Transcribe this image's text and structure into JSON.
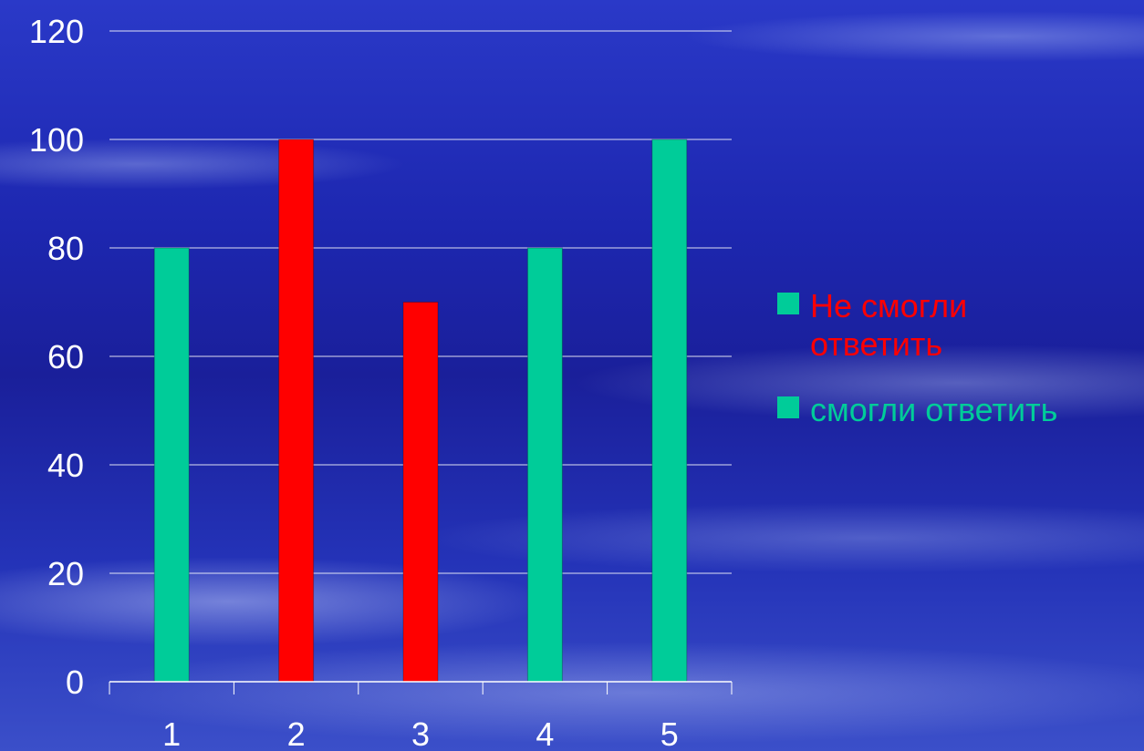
{
  "colors": {
    "background": "#1d27b0",
    "red": "#ff0000",
    "green": "#00cc99",
    "grid": "#ffffff",
    "text": "#ffffff"
  },
  "chart_data": {
    "type": "bar",
    "categories": [
      "1",
      "2",
      "3",
      "4",
      "5"
    ],
    "values": [
      80,
      100,
      70,
      80,
      100
    ],
    "bar_colors": [
      "#00cc99",
      "#ff0000",
      "#ff0000",
      "#00cc99",
      "#00cc99"
    ],
    "ylim": [
      0,
      120
    ],
    "yticks": [
      "0",
      "20",
      "40",
      "60",
      "80",
      "100",
      "120"
    ],
    "grid": true,
    "legend": {
      "position": "right",
      "entries": [
        {
          "lines": [
            "Не смогли",
            "ответить"
          ],
          "swatch_color": "#00cc99",
          "text_color": "#ff0000"
        },
        {
          "lines": [
            "смогли ответить"
          ],
          "swatch_color": "#00cc99",
          "text_color": "#00cc99"
        }
      ]
    }
  }
}
